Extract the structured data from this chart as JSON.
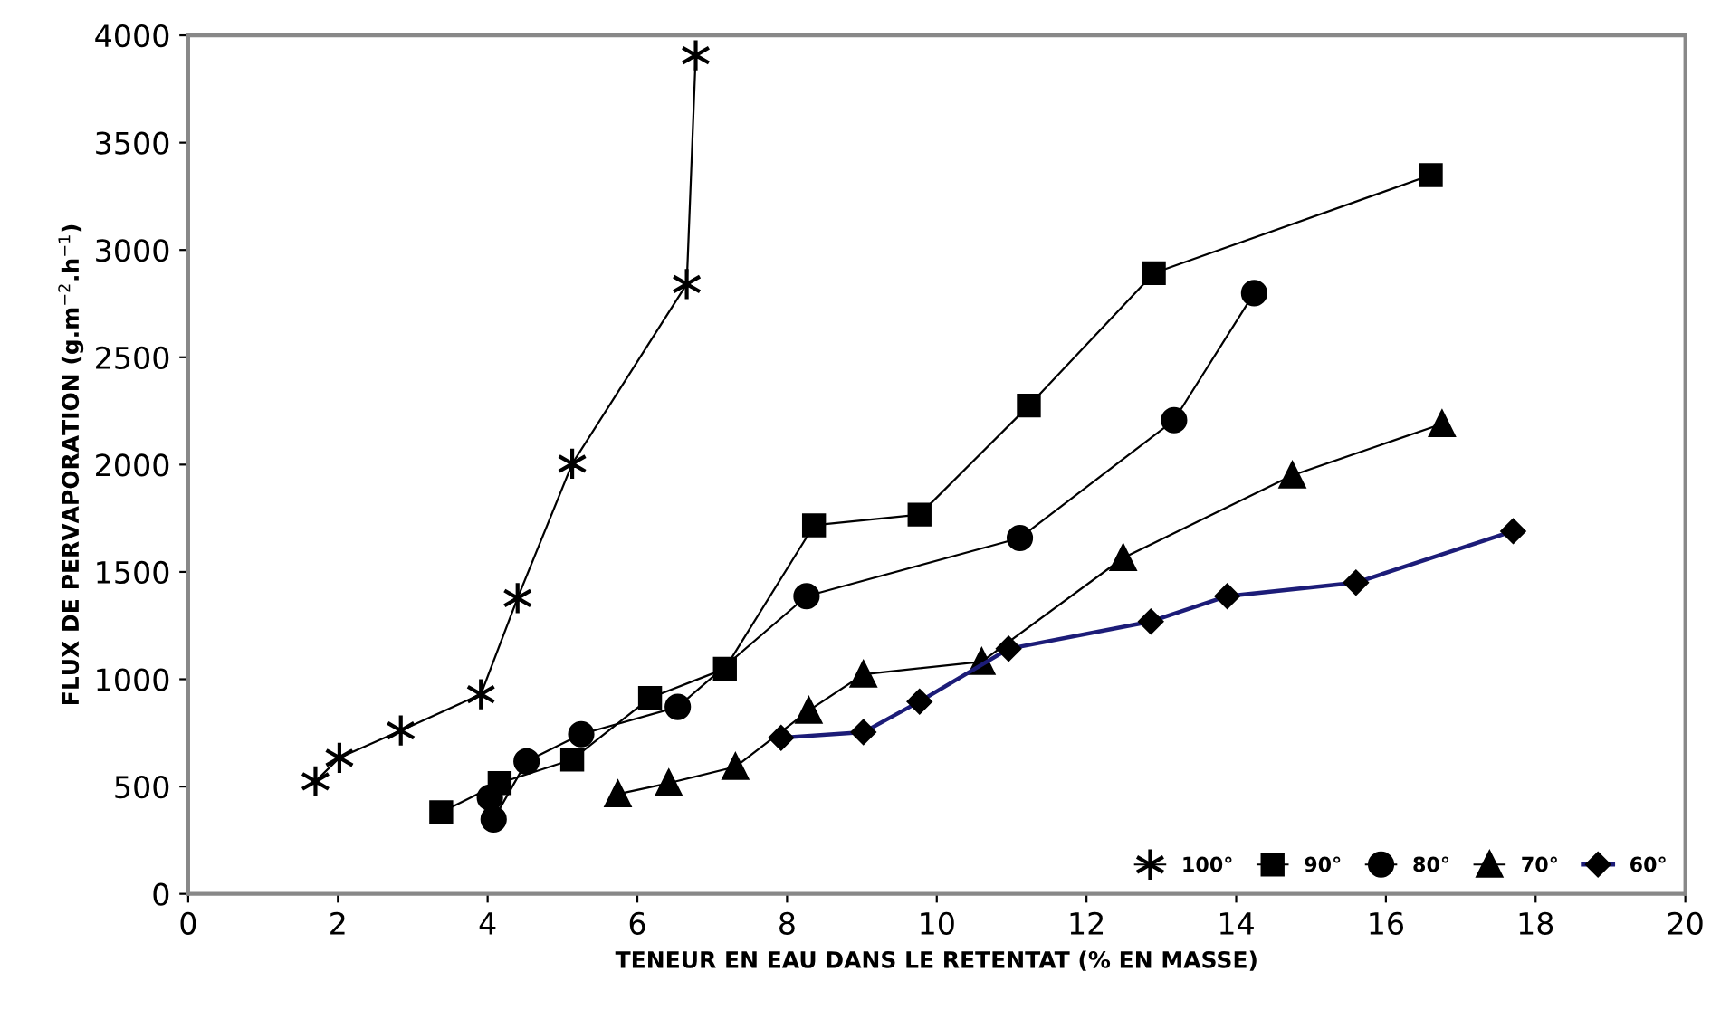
{
  "chart_data": {
    "type": "line",
    "xlabel": "TENEUR EN EAU DANS LE RETENTAT (% EN MASSE)",
    "ylabel": "FLUX DE PERVAPORATION (g.m$^{−2}$.h$^{−1}$)",
    "xlim": [
      0,
      20
    ],
    "xticks": [
      0,
      2,
      4,
      6,
      8,
      10,
      12,
      14,
      16,
      18,
      20
    ],
    "ylim": [
      0,
      4000
    ],
    "yticks": [
      0,
      500,
      1000,
      1500,
      2000,
      2500,
      3000,
      3500,
      4000
    ],
    "grid": false,
    "legend": "bottom right",
    "series": [
      {
        "name": "100°",
        "color": "#000000",
        "marker": "cross",
        "x": [
          1.7,
          2.02,
          2.84,
          3.91,
          4.4,
          5.13,
          6.66,
          6.78
        ],
        "values": [
          524,
          634,
          761,
          930,
          1378,
          2004,
          2841,
          3907
        ]
      },
      {
        "name": "90°",
        "color": "#000000",
        "marker": "square",
        "x": [
          3.38,
          4.16,
          5.13,
          6.17,
          7.17,
          8.36,
          9.77,
          11.23,
          12.9,
          16.6
        ],
        "values": [
          380,
          516,
          626,
          913,
          1049,
          1717,
          1767,
          2275,
          2892,
          3349
        ]
      },
      {
        "name": "80°",
        "color": "#000000",
        "marker": "circle",
        "x": [
          4.03,
          4.08,
          4.52,
          5.25,
          6.54,
          8.26,
          11.11,
          13.17,
          14.24
        ],
        "values": [
          448,
          347,
          617,
          744,
          871,
          1387,
          1658,
          2207,
          2799
        ]
      },
      {
        "name": "70°",
        "color": "#000000",
        "marker": "triangle",
        "x": [
          5.74,
          6.42,
          7.31,
          8.29,
          9.02,
          10.6,
          12.49,
          14.75,
          16.75
        ],
        "values": [
          465,
          516,
          592,
          854,
          1023,
          1082,
          1565,
          1950,
          2190
        ]
      },
      {
        "name": "60°",
        "color": "#1c1c78",
        "marker": "diamond",
        "x": [
          7.92,
          9.02,
          9.77,
          10.96,
          12.86,
          13.88,
          15.6,
          17.7
        ],
        "values": [
          727,
          753,
          896,
          1142,
          1269,
          1387,
          1450,
          1690
        ]
      }
    ]
  }
}
